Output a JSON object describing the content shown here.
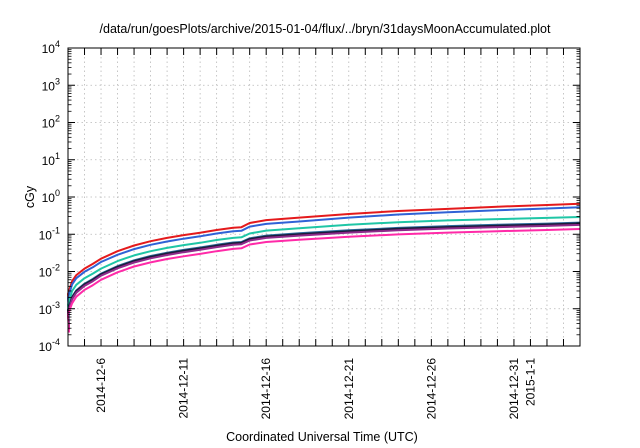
{
  "chart_data": {
    "type": "line",
    "title": "/data/run/goesPlots/archive/2015-01-04/flux/../bryn/31daysMoonAccumulated.plot",
    "xlabel": "Coordinated Universal Time (UTC)",
    "ylabel": "cGy",
    "y_scale": "log",
    "ylim": [
      0.0001,
      10000
    ],
    "xlim": [
      "2014-12-04",
      "2015-01-04"
    ],
    "grid": true,
    "y_ticks": [
      {
        "base": "10",
        "exp": "-4"
      },
      {
        "base": "10",
        "exp": "-3"
      },
      {
        "base": "10",
        "exp": "-2"
      },
      {
        "base": "10",
        "exp": "-1"
      },
      {
        "base": "10",
        "exp": "0"
      },
      {
        "base": "10",
        "exp": "1"
      },
      {
        "base": "10",
        "exp": "2"
      },
      {
        "base": "10",
        "exp": "3"
      },
      {
        "base": "10",
        "exp": "4"
      }
    ],
    "x_ticks": [
      {
        "date": "2014-12-06",
        "label": "2014-12-6"
      },
      {
        "date": "2014-12-11",
        "label": "2014-12-11"
      },
      {
        "date": "2014-12-16",
        "label": "2014-12-16"
      },
      {
        "date": "2014-12-21",
        "label": "2014-12-21"
      },
      {
        "date": "2014-12-26",
        "label": "2014-12-26"
      },
      {
        "date": "2014-12-31",
        "label": "2014-12-31"
      },
      {
        "date": "2015-01-01",
        "label": "2015-1-1"
      }
    ],
    "x": [
      "2014-12-04",
      "2014-12-04 06:00",
      "2014-12-04 12:00",
      "2014-12-05",
      "2014-12-05 12:00",
      "2014-12-06",
      "2014-12-07",
      "2014-12-08",
      "2014-12-09",
      "2014-12-10",
      "2014-12-11",
      "2014-12-12",
      "2014-12-13",
      "2014-12-14",
      "2014-12-14 12:00",
      "2014-12-15",
      "2014-12-16",
      "2014-12-18",
      "2014-12-21",
      "2014-12-24",
      "2014-12-27",
      "2014-12-30",
      "2015-01-02",
      "2015-01-04"
    ],
    "series": [
      {
        "color": "#e41a1c",
        "values": [
          0.0025,
          0.0055,
          0.008,
          0.012,
          0.016,
          0.022,
          0.035,
          0.05,
          0.065,
          0.08,
          0.095,
          0.11,
          0.13,
          0.15,
          0.155,
          0.2,
          0.24,
          0.28,
          0.35,
          0.42,
          0.48,
          0.55,
          0.61,
          0.66
        ]
      },
      {
        "color": "#2f62d6",
        "values": [
          0.002,
          0.0045,
          0.0066,
          0.0098,
          0.013,
          0.018,
          0.028,
          0.04,
          0.052,
          0.064,
          0.076,
          0.088,
          0.105,
          0.12,
          0.124,
          0.16,
          0.19,
          0.22,
          0.28,
          0.34,
          0.39,
          0.44,
          0.49,
          0.53
        ]
      },
      {
        "color": "#1fc6a6",
        "values": [
          0.0013,
          0.003,
          0.0044,
          0.0066,
          0.0088,
          0.012,
          0.019,
          0.027,
          0.035,
          0.043,
          0.051,
          0.059,
          0.07,
          0.08,
          0.083,
          0.105,
          0.125,
          0.145,
          0.18,
          0.21,
          0.235,
          0.255,
          0.275,
          0.29
        ]
      },
      {
        "color": "#2a6b9b",
        "values": [
          0.00095,
          0.0021,
          0.0031,
          0.0047,
          0.0063,
          0.0088,
          0.014,
          0.02,
          0.026,
          0.032,
          0.038,
          0.044,
          0.052,
          0.06,
          0.062,
          0.078,
          0.092,
          0.106,
          0.128,
          0.148,
          0.165,
          0.18,
          0.193,
          0.205
        ]
      },
      {
        "color": "#1b1b3a",
        "values": [
          0.0009,
          0.002,
          0.003,
          0.0045,
          0.006,
          0.0084,
          0.0133,
          0.019,
          0.0247,
          0.0304,
          0.0361,
          0.0418,
          0.0494,
          0.057,
          0.059,
          0.074,
          0.087,
          0.1,
          0.121,
          0.14,
          0.156,
          0.17,
          0.183,
          0.195
        ]
      },
      {
        "color": "#8e2a8a",
        "values": [
          0.00082,
          0.0018,
          0.0027,
          0.0041,
          0.0055,
          0.0077,
          0.0122,
          0.0174,
          0.0226,
          0.0278,
          0.033,
          0.0382,
          0.0452,
          0.0522,
          0.054,
          0.068,
          0.08,
          0.092,
          0.111,
          0.128,
          0.143,
          0.156,
          0.168,
          0.178
        ]
      },
      {
        "color": "#ff2aa8",
        "values": [
          0.0007,
          0.0014,
          0.0021,
          0.0032,
          0.0043,
          0.006,
          0.0095,
          0.0136,
          0.0176,
          0.0216,
          0.0256,
          0.0296,
          0.035,
          0.0405,
          0.042,
          0.053,
          0.062,
          0.071,
          0.086,
          0.099,
          0.111,
          0.121,
          0.13,
          0.138
        ]
      }
    ]
  }
}
